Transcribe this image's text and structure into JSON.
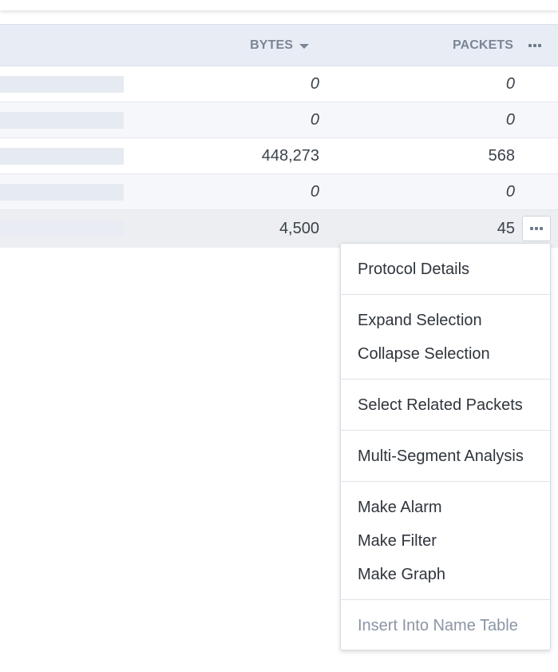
{
  "table": {
    "columns": {
      "bytes": "BYTES",
      "packets": "PACKETS"
    },
    "rows": [
      {
        "bytes": "0",
        "packets": "0"
      },
      {
        "bytes": "0",
        "packets": "0"
      },
      {
        "bytes": "448,273",
        "packets": "568"
      },
      {
        "bytes": "0",
        "packets": "0"
      },
      {
        "bytes": "4,500",
        "packets": "45"
      }
    ]
  },
  "context_menu": {
    "groups": [
      [
        "Protocol Details"
      ],
      [
        "Expand Selection",
        "Collapse Selection"
      ],
      [
        "Select Related Packets"
      ],
      [
        "Multi-Segment Analysis"
      ],
      [
        "Make Alarm",
        "Make Filter",
        "Make Graph"
      ],
      [
        "Insert Into Name Table"
      ]
    ]
  },
  "icons": {
    "header_more": "more-horizontal-icon",
    "sort": "caret-down-icon",
    "row_more": "more-horizontal-icon"
  },
  "colors": {
    "header_bg": "#e8edf5",
    "row_alt_bg": "#f5f7fb",
    "row_hover_bg": "#eceef1",
    "text": "#3b424a",
    "header_text": "#7b8696",
    "disabled_text": "#8b95a3"
  }
}
